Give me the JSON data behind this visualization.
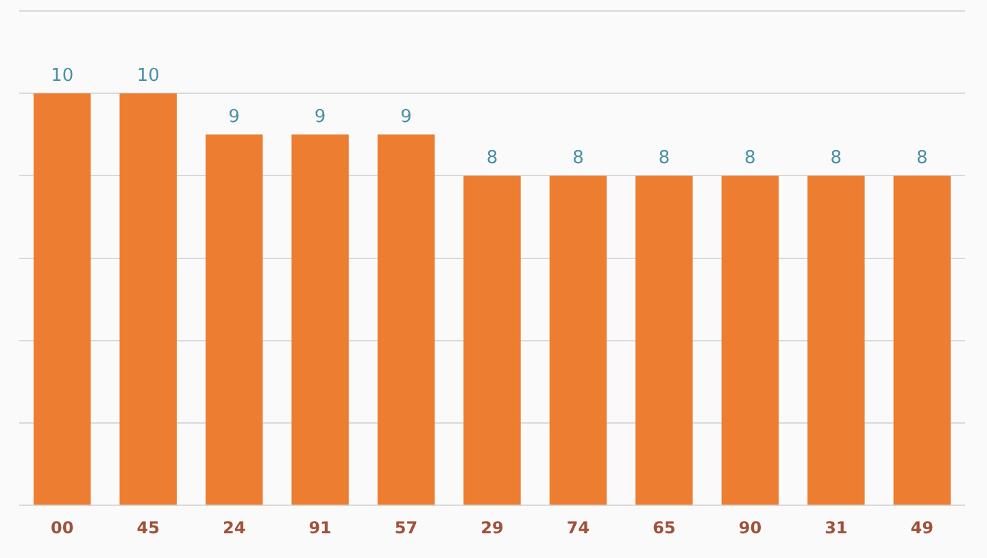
{
  "chart_data": {
    "type": "bar",
    "categories": [
      "00",
      "45",
      "24",
      "91",
      "57",
      "29",
      "74",
      "65",
      "90",
      "31",
      "49"
    ],
    "values": [
      10,
      10,
      9,
      9,
      9,
      8,
      8,
      8,
      8,
      8,
      8
    ],
    "color": "#ed7d31",
    "ylim": [
      0,
      12
    ],
    "yticks": [
      {
        "value": 0,
        "label": null
      },
      {
        "value": 2,
        "label": null
      },
      {
        "value": 4,
        "label": null
      },
      {
        "value": 6,
        "label": null
      },
      {
        "value": 8,
        "label": null
      },
      {
        "value": 10,
        "label": null
      },
      {
        "value": 12,
        "label": null
      }
    ],
    "grid": "y",
    "tick_labels": "x",
    "data_labels": true,
    "legend": false
  }
}
